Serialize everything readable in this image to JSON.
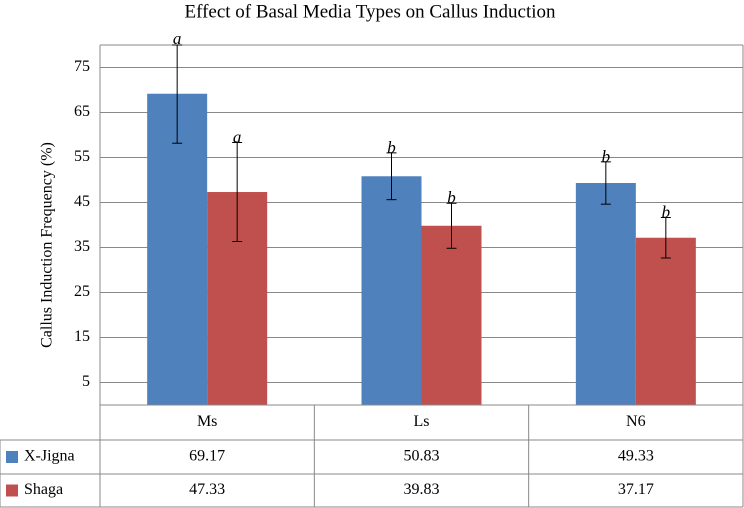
{
  "chart_data": {
    "type": "bar",
    "title": "Effect of Basal Media Types on Callus Induction",
    "y_label": "Callus Induction Frequency   (%)",
    "categories": [
      "Ms",
      "Ls",
      "N6"
    ],
    "series": [
      {
        "name": "X-Jigna",
        "color": "#4f81bd",
        "values": [
          69.17,
          50.83,
          49.33
        ],
        "errors": [
          11,
          5.2,
          4.7
        ],
        "significance": [
          "a",
          "b",
          "b"
        ]
      },
      {
        "name": "Shaga",
        "color": "#c0504d",
        "values": [
          47.33,
          39.83,
          37.17
        ],
        "errors": [
          11,
          5,
          4.5
        ],
        "significance": [
          "a",
          "b",
          "b"
        ]
      }
    ],
    "ylim": [
      0,
      80
    ],
    "yticks": [
      5,
      15,
      25,
      35,
      45,
      55,
      65,
      75
    ],
    "grid": true,
    "data_table": true
  }
}
